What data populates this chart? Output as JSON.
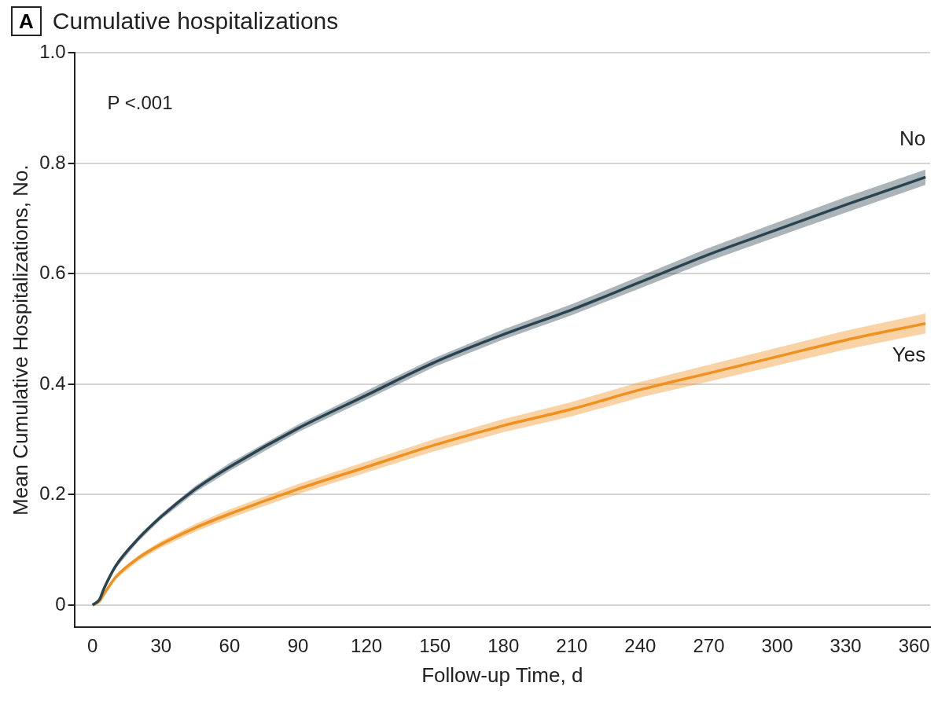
{
  "chart_data": {
    "type": "line",
    "title": "Cumulative hospitalizations",
    "xlabel": "Follow-up Time, d",
    "ylabel": "Mean Cumulative Hospitalizations, No.",
    "annotations": [
      "A",
      "P <.001"
    ],
    "x": [
      0,
      3,
      5,
      10,
      20,
      30,
      45,
      60,
      90,
      120,
      150,
      180,
      210,
      240,
      270,
      300,
      330,
      365
    ],
    "series": [
      {
        "name": "No",
        "color": "#2b4450",
        "values": [
          0,
          0.01,
          0.03,
          0.07,
          0.12,
          0.16,
          0.21,
          0.25,
          0.32,
          0.38,
          0.44,
          0.49,
          0.535,
          0.585,
          0.635,
          0.68,
          0.725,
          0.775
        ],
        "lower": [
          0,
          0.008,
          0.027,
          0.066,
          0.115,
          0.155,
          0.204,
          0.243,
          0.313,
          0.372,
          0.432,
          0.481,
          0.525,
          0.574,
          0.623,
          0.667,
          0.711,
          0.761
        ],
        "upper": [
          0,
          0.012,
          0.033,
          0.074,
          0.125,
          0.165,
          0.216,
          0.257,
          0.327,
          0.388,
          0.448,
          0.499,
          0.545,
          0.596,
          0.647,
          0.693,
          0.739,
          0.789
        ]
      },
      {
        "name": "Yes",
        "color": "#f0901e",
        "values": [
          0,
          0.007,
          0.02,
          0.05,
          0.085,
          0.11,
          0.14,
          0.165,
          0.21,
          0.25,
          0.29,
          0.325,
          0.355,
          0.39,
          0.42,
          0.45,
          0.48,
          0.51
        ],
        "lower": [
          0,
          0.005,
          0.017,
          0.046,
          0.08,
          0.104,
          0.133,
          0.157,
          0.201,
          0.24,
          0.279,
          0.313,
          0.342,
          0.376,
          0.405,
          0.434,
          0.463,
          0.492
        ],
        "upper": [
          0,
          0.009,
          0.023,
          0.054,
          0.09,
          0.116,
          0.147,
          0.173,
          0.219,
          0.26,
          0.301,
          0.337,
          0.368,
          0.404,
          0.435,
          0.466,
          0.497,
          0.528
        ]
      }
    ],
    "xlim": [
      -8,
      367
    ],
    "xticks": [
      0,
      30,
      60,
      90,
      120,
      150,
      180,
      210,
      240,
      270,
      300,
      330,
      360
    ],
    "ylim": [
      -0.04,
      1
    ],
    "yticks": [
      0,
      0.2,
      0.4,
      0.6,
      0.8,
      {
        "value": 1,
        "label": "1.0"
      }
    ],
    "grid": "y",
    "legend": false,
    "marker": "none",
    "line_style": "solid"
  }
}
